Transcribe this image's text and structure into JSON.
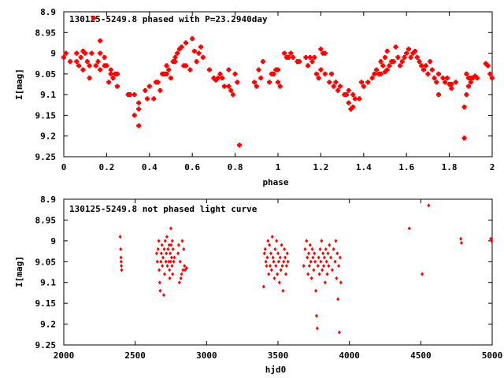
{
  "chart_data": [
    {
      "type": "scatter",
      "title": "130125-5249.8 phased with P=23.2940day",
      "xlabel": "phase",
      "ylabel": "I[mag]",
      "xlim": [
        0,
        2
      ],
      "ylim": [
        8.9,
        9.25
      ],
      "y_inverted": true,
      "grid": false,
      "marker": "plus",
      "color": "#ff0000",
      "xticks": [
        "0",
        "0.2",
        "0.4",
        "0.6",
        "0.8",
        "1",
        "1.2",
        "1.4",
        "1.6",
        "1.8",
        "2"
      ],
      "yticks": [
        "8.9",
        "8.95",
        "9",
        "9.05",
        "9.1",
        "9.15",
        "9.2",
        "9.25"
      ],
      "points": [
        [
          0.0,
          9.01
        ],
        [
          0.01,
          9.0
        ],
        [
          0.03,
          9.02
        ],
        [
          0.06,
          9.0
        ],
        [
          0.06,
          9.02
        ],
        [
          0.07,
          9.03
        ],
        [
          0.08,
          9.01
        ],
        [
          0.09,
          8.995
        ],
        [
          0.09,
          9.04
        ],
        [
          0.1,
          9.0
        ],
        [
          0.11,
          9.02
        ],
        [
          0.12,
          9.03
        ],
        [
          0.12,
          9.06
        ],
        [
          0.13,
          9.0
        ],
        [
          0.14,
          8.915
        ],
        [
          0.15,
          9.03
        ],
        [
          0.16,
          9.02
        ],
        [
          0.17,
          9.04
        ],
        [
          0.17,
          9.0
        ],
        [
          0.17,
          8.97
        ],
        [
          0.19,
          9.01
        ],
        [
          0.19,
          9.03
        ],
        [
          0.2,
          9.03
        ],
        [
          0.21,
          9.07
        ],
        [
          0.22,
          9.05
        ],
        [
          0.22,
          9.04
        ],
        [
          0.23,
          9.06
        ],
        [
          0.24,
          9.05
        ],
        [
          0.25,
          9.05
        ],
        [
          0.25,
          9.08
        ],
        [
          0.3,
          9.1
        ],
        [
          0.31,
          9.1
        ],
        [
          0.33,
          9.1
        ],
        [
          0.33,
          9.15
        ],
        [
          0.35,
          9.12
        ],
        [
          0.35,
          9.135
        ],
        [
          0.35,
          9.175
        ],
        [
          0.38,
          9.09
        ],
        [
          0.39,
          9.11
        ],
        [
          0.4,
          9.08
        ],
        [
          0.42,
          9.11
        ],
        [
          0.43,
          9.07
        ],
        [
          0.44,
          9.07
        ],
        [
          0.45,
          9.09
        ],
        [
          0.46,
          9.05
        ],
        [
          0.47,
          9.05
        ],
        [
          0.48,
          9.03
        ],
        [
          0.48,
          9.05
        ],
        [
          0.49,
          9.04
        ],
        [
          0.5,
          9.06
        ],
        [
          0.51,
          9.02
        ],
        [
          0.52,
          9.02
        ],
        [
          0.52,
          9.01
        ],
        [
          0.53,
          9.0
        ],
        [
          0.54,
          8.99
        ],
        [
          0.55,
          8.985
        ],
        [
          0.56,
          9.03
        ],
        [
          0.57,
          8.975
        ],
        [
          0.57,
          9.03
        ],
        [
          0.59,
          9.04
        ],
        [
          0.6,
          8.965
        ],
        [
          0.61,
          8.995
        ],
        [
          0.62,
          9.02
        ],
        [
          0.63,
          9.0
        ],
        [
          0.64,
          8.985
        ],
        [
          0.65,
          9.01
        ],
        [
          0.68,
          9.04
        ],
        [
          0.7,
          9.06
        ],
        [
          0.71,
          9.065
        ],
        [
          0.72,
          9.06
        ],
        [
          0.73,
          9.05
        ],
        [
          0.74,
          9.06
        ],
        [
          0.75,
          9.08
        ],
        [
          0.77,
          9.08
        ],
        [
          0.77,
          9.04
        ],
        [
          0.78,
          9.09
        ],
        [
          0.79,
          9.1
        ],
        [
          0.8,
          9.05
        ],
        [
          0.81,
          9.07
        ],
        [
          0.82,
          9.222
        ],
        [
          0.89,
          9.07
        ],
        [
          0.9,
          9.08
        ],
        [
          0.91,
          9.04
        ],
        [
          0.92,
          9.06
        ],
        [
          0.93,
          9.02
        ],
        [
          0.96,
          9.07
        ],
        [
          0.97,
          9.05
        ],
        [
          0.98,
          9.05
        ],
        [
          0.99,
          9.04
        ],
        [
          1.0,
          9.07
        ],
        [
          1.0,
          9.04
        ],
        [
          1.01,
          9.08
        ],
        [
          1.03,
          9.0
        ],
        [
          1.04,
          9.01
        ],
        [
          1.05,
          9.01
        ],
        [
          1.06,
          9.0
        ],
        [
          1.07,
          9.01
        ],
        [
          1.09,
          9.02
        ],
        [
          1.1,
          9.02
        ],
        [
          1.13,
          9.01
        ],
        [
          1.14,
          9.03
        ],
        [
          1.15,
          9.01
        ],
        [
          1.16,
          9.02
        ],
        [
          1.17,
          9.01
        ],
        [
          1.18,
          9.05
        ],
        [
          1.19,
          9.06
        ],
        [
          1.2,
          9.04
        ],
        [
          1.2,
          8.99
        ],
        [
          1.21,
          9.0
        ],
        [
          1.22,
          9.0
        ],
        [
          1.22,
          9.05
        ],
        [
          1.24,
          9.07
        ],
        [
          1.25,
          9.05
        ],
        [
          1.26,
          9.08
        ],
        [
          1.27,
          9.07
        ],
        [
          1.28,
          9.09
        ],
        [
          1.29,
          9.08
        ],
        [
          1.31,
          9.1
        ],
        [
          1.32,
          9.1
        ],
        [
          1.33,
          9.09
        ],
        [
          1.33,
          9.12
        ],
        [
          1.34,
          9.135
        ],
        [
          1.35,
          9.13
        ],
        [
          1.35,
          9.1
        ],
        [
          1.36,
          9.11
        ],
        [
          1.38,
          9.11
        ],
        [
          1.39,
          9.07
        ],
        [
          1.4,
          9.08
        ],
        [
          1.42,
          9.07
        ],
        [
          1.44,
          9.06
        ],
        [
          1.45,
          9.05
        ],
        [
          1.46,
          9.04
        ],
        [
          1.47,
          9.05
        ],
        [
          1.48,
          9.02
        ],
        [
          1.48,
          9.05
        ],
        [
          1.49,
          9.03
        ],
        [
          1.5,
          9.045
        ],
        [
          1.5,
          9.01
        ],
        [
          1.51,
          8.995
        ],
        [
          1.51,
          9.04
        ],
        [
          1.52,
          9.03
        ],
        [
          1.53,
          9.02
        ],
        [
          1.54,
          9.02
        ],
        [
          1.55,
          8.985
        ],
        [
          1.56,
          9.01
        ],
        [
          1.57,
          9.03
        ],
        [
          1.58,
          9.02
        ],
        [
          1.59,
          9.01
        ],
        [
          1.6,
          9.0
        ],
        [
          1.61,
          8.99
        ],
        [
          1.62,
          9.01
        ],
        [
          1.63,
          9.0
        ],
        [
          1.64,
          8.995
        ],
        [
          1.65,
          9.01
        ],
        [
          1.66,
          9.02
        ],
        [
          1.67,
          9.03
        ],
        [
          1.68,
          9.04
        ],
        [
          1.69,
          9.03
        ],
        [
          1.7,
          9.05
        ],
        [
          1.71,
          9.02
        ],
        [
          1.72,
          9.04
        ],
        [
          1.73,
          9.06
        ],
        [
          1.74,
          9.07
        ],
        [
          1.75,
          9.1
        ],
        [
          1.75,
          9.05
        ],
        [
          1.77,
          9.06
        ],
        [
          1.78,
          9.07
        ],
        [
          1.79,
          9.06
        ],
        [
          1.8,
          9.075
        ],
        [
          1.81,
          9.085
        ],
        [
          1.81,
          9.075
        ],
        [
          1.83,
          9.07
        ],
        [
          1.87,
          9.205
        ],
        [
          1.87,
          9.13
        ],
        [
          1.88,
          9.1
        ],
        [
          1.88,
          9.05
        ],
        [
          1.89,
          9.06
        ],
        [
          1.89,
          9.08
        ],
        [
          1.9,
          9.06
        ],
        [
          1.9,
          9.07
        ],
        [
          1.91,
          9.06
        ],
        [
          1.92,
          9.055
        ],
        [
          1.93,
          9.06
        ],
        [
          1.97,
          9.025
        ],
        [
          1.98,
          9.03
        ],
        [
          1.99,
          9.05
        ],
        [
          2.0,
          9.06
        ]
      ]
    },
    {
      "type": "scatter",
      "title": "130125-5249.8 not phased light curve",
      "xlabel": "hjd0",
      "ylabel": "I[mag]",
      "xlim": [
        2000,
        5000
      ],
      "ylim": [
        8.9,
        9.25
      ],
      "y_inverted": true,
      "grid": false,
      "marker": "diamond",
      "color": "#ff0000",
      "xticks": [
        "2000",
        "2500",
        "3000",
        "3500",
        "4000",
        "4500",
        "5000"
      ],
      "yticks": [
        "8.9",
        "8.95",
        "9",
        "9.05",
        "9.1",
        "9.15",
        "9.2",
        "9.25"
      ],
      "points": [
        [
          2395,
          8.99
        ],
        [
          2398,
          9.02
        ],
        [
          2400,
          9.04
        ],
        [
          2402,
          9.05
        ],
        [
          2403,
          9.06
        ],
        [
          2405,
          9.07
        ],
        [
          2650,
          9.03
        ],
        [
          2655,
          9.05
        ],
        [
          2660,
          9.02
        ],
        [
          2665,
          9.0
        ],
        [
          2668,
          9.07
        ],
        [
          2672,
          9.1
        ],
        [
          2675,
          9.12
        ],
        [
          2680,
          9.05
        ],
        [
          2683,
          9.03
        ],
        [
          2688,
          9.01
        ],
        [
          2690,
          9.06
        ],
        [
          2695,
          9.04
        ],
        [
          2700,
          9.13
        ],
        [
          2703,
          9.02
        ],
        [
          2706,
          9.08
        ],
        [
          2710,
          9.0
        ],
        [
          2715,
          9.05
        ],
        [
          2718,
          9.03
        ],
        [
          2722,
          8.99
        ],
        [
          2725,
          9.06
        ],
        [
          2730,
          9.02
        ],
        [
          2735,
          9.05
        ],
        [
          2738,
          9.01
        ],
        [
          2740,
          9.07
        ],
        [
          2742,
          9.09
        ],
        [
          2745,
          9.03
        ],
        [
          2748,
          9.05
        ],
        [
          2750,
          8.97
        ],
        [
          2752,
          9.01
        ],
        [
          2755,
          9.04
        ],
        [
          2758,
          9.06
        ],
        [
          2760,
          9.0
        ],
        [
          2762,
          9.08
        ],
        [
          2765,
          9.02
        ],
        [
          2770,
          9.05
        ],
        [
          2775,
          9.04
        ],
        [
          2800,
          9.03
        ],
        [
          2805,
          9.01
        ],
        [
          2810,
          9.1
        ],
        [
          2815,
          9.05
        ],
        [
          2820,
          9.09
        ],
        [
          2825,
          9.08
        ],
        [
          2830,
          9.0
        ],
        [
          2835,
          9.07
        ],
        [
          2840,
          9.02
        ],
        [
          2845,
          9.06
        ],
        [
          2850,
          9.07
        ],
        [
          2860,
          9.065
        ],
        [
          3400,
          9.11
        ],
        [
          3405,
          9.03
        ],
        [
          3410,
          9.02
        ],
        [
          3415,
          9.05
        ],
        [
          3420,
          9.06
        ],
        [
          3425,
          9.04
        ],
        [
          3430,
          9.0
        ],
        [
          3435,
          9.08
        ],
        [
          3440,
          9.01
        ],
        [
          3445,
          9.06
        ],
        [
          3450,
          9.03
        ],
        [
          3455,
          9.07
        ],
        [
          3460,
          8.99
        ],
        [
          3465,
          9.04
        ],
        [
          3470,
          9.05
        ],
        [
          3475,
          9.09
        ],
        [
          3480,
          9.02
        ],
        [
          3485,
          9.06
        ],
        [
          3490,
          9.0
        ],
        [
          3495,
          9.08
        ],
        [
          3500,
          9.03
        ],
        [
          3505,
          9.05
        ],
        [
          3510,
          9.1
        ],
        [
          3515,
          9.04
        ],
        [
          3520,
          9.07
        ],
        [
          3525,
          9.01
        ],
        [
          3530,
          9.06
        ],
        [
          3535,
          9.12
        ],
        [
          3540,
          9.05
        ],
        [
          3545,
          9.02
        ],
        [
          3550,
          9.04
        ],
        [
          3555,
          9.08
        ],
        [
          3560,
          9.06
        ],
        [
          3565,
          9.03
        ],
        [
          3570,
          9.05
        ],
        [
          3680,
          9.06
        ],
        [
          3690,
          9.02
        ],
        [
          3700,
          9.0
        ],
        [
          3705,
          9.04
        ],
        [
          3710,
          9.08
        ],
        [
          3715,
          9.03
        ],
        [
          3720,
          9.06
        ],
        [
          3725,
          9.01
        ],
        [
          3730,
          9.05
        ],
        [
          3735,
          9.09
        ],
        [
          3740,
          9.02
        ],
        [
          3745,
          9.04
        ],
        [
          3750,
          9.07
        ],
        [
          3755,
          9.03
        ],
        [
          3760,
          9.05
        ],
        [
          3765,
          9.12
        ],
        [
          3770,
          9.18
        ],
        [
          3775,
          9.21
        ],
        [
          3780,
          9.06
        ],
        [
          3785,
          9.04
        ],
        [
          3790,
          9.08
        ],
        [
          3795,
          9.02
        ],
        [
          3800,
          9.05
        ],
        [
          3805,
          9.0
        ],
        [
          3810,
          9.07
        ],
        [
          3815,
          9.03
        ],
        [
          3820,
          9.06
        ],
        [
          3825,
          9.04
        ],
        [
          3830,
          9.1
        ],
        [
          3835,
          9.02
        ],
        [
          3840,
          9.05
        ],
        [
          3845,
          9.08
        ],
        [
          3850,
          9.03
        ],
        [
          3855,
          9.06
        ],
        [
          3860,
          9.01
        ],
        [
          3870,
          9.04
        ],
        [
          3880,
          9.07
        ],
        [
          3890,
          9.02
        ],
        [
          3900,
          9.05
        ],
        [
          3905,
          9.0
        ],
        [
          3910,
          9.09
        ],
        [
          3915,
          9.03
        ],
        [
          3920,
          9.14
        ],
        [
          3925,
          9.06
        ],
        [
          3930,
          9.22
        ],
        [
          3935,
          9.04
        ],
        [
          3940,
          9.1
        ],
        [
          4420,
          8.97
        ],
        [
          4510,
          9.08
        ],
        [
          4555,
          8.915
        ],
        [
          4780,
          8.995
        ],
        [
          4785,
          9.005
        ],
        [
          4990,
          8.995
        ],
        [
          4995,
          9.0
        ]
      ]
    }
  ]
}
